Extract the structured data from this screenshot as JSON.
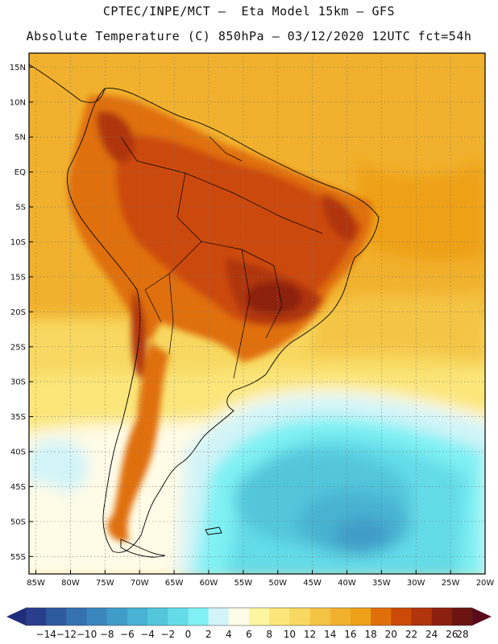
{
  "header": {
    "line1": "CPTEC/INPE/MCT –  Eta Model 15km – GFS",
    "line2": "Absolute Temperature (C) 850hPa – 03/12/2020 12UTC fct=54h"
  },
  "map": {
    "lat_labels": [
      "15N",
      "10N",
      "5N",
      "EQ",
      "5S",
      "10S",
      "15S",
      "20S",
      "25S",
      "30S",
      "35S",
      "40S",
      "45S",
      "50S",
      "55S"
    ],
    "lat_values": [
      15,
      10,
      5,
      0,
      -5,
      -10,
      -15,
      -20,
      -25,
      -30,
      -35,
      -40,
      -45,
      -50,
      -55
    ],
    "lon_labels": [
      "85W",
      "80W",
      "75W",
      "70W",
      "65W",
      "60W",
      "55W",
      "50W",
      "45W",
      "40W",
      "35W",
      "30W",
      "25W",
      "20W"
    ],
    "lon_values": [
      -85,
      -80,
      -75,
      -70,
      -65,
      -60,
      -55,
      -50,
      -45,
      -40,
      -35,
      -30,
      -25,
      -20
    ],
    "lat_range": [
      -57.5,
      17
    ],
    "lon_range": [
      -86,
      -20
    ]
  },
  "colorbar": {
    "labels": [
      "-14",
      "-12",
      "-10",
      "-8",
      "-6",
      "-4",
      "-2",
      "0",
      "2",
      "4",
      "6",
      "8",
      "10",
      "12",
      "14",
      "16",
      "18",
      "20",
      "22",
      "24",
      "26",
      "28"
    ],
    "colors": [
      "#2a3e8e",
      "#2f5aa0",
      "#3371b0",
      "#3a87bd",
      "#3f9cc8",
      "#48b2d2",
      "#53c6dc",
      "#63dce8",
      "#7ff1f4",
      "#d2f4f8",
      "#fffbe6",
      "#fdf6a0",
      "#fbe67a",
      "#f8d860",
      "#f4c545",
      "#f1b12e",
      "#eea018",
      "#e06f0a",
      "#cc4a08",
      "#b0340c",
      "#8c2010",
      "#6b1410"
    ],
    "left_arrow_color": "#1e2e7a",
    "right_arrow_color": "#5a0a1a"
  }
}
